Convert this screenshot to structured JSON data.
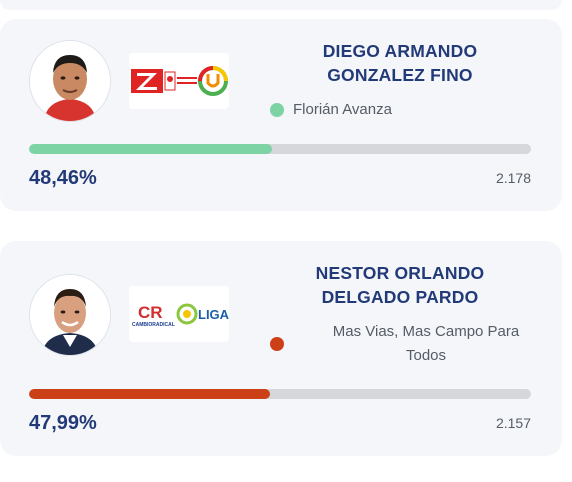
{
  "candidates": [
    {
      "name_line1": "DIEGO ARMANDO",
      "name_line2": "GONZALEZ FINO",
      "party_name": "Florián Avanza",
      "party_color": "#7dd3a4",
      "percent": "48,46%",
      "percent_value": 48.46,
      "votes": "2.178",
      "bar_color": "#7dd3a4",
      "logo_icons": [
        "liberal-party-logo",
        "aico-logo",
        "la-u-party-logo"
      ]
    },
    {
      "name_line1": "NESTOR ORLANDO",
      "name_line2": "DELGADO PARDO",
      "party_name_line1": "Mas Vias, Mas Campo Para",
      "party_name_line2": "Todos",
      "party_color": "#cc4018",
      "percent": "47,99%",
      "percent_value": 47.99,
      "votes": "2.157",
      "bar_color": "#cc4018",
      "logo_icons": [
        "cambio-radical-logo",
        "liga-logo"
      ],
      "logo_text": {
        "cr": "CR",
        "cambio": "CAMBIORADICAL",
        "liga": "LIGA"
      }
    }
  ]
}
